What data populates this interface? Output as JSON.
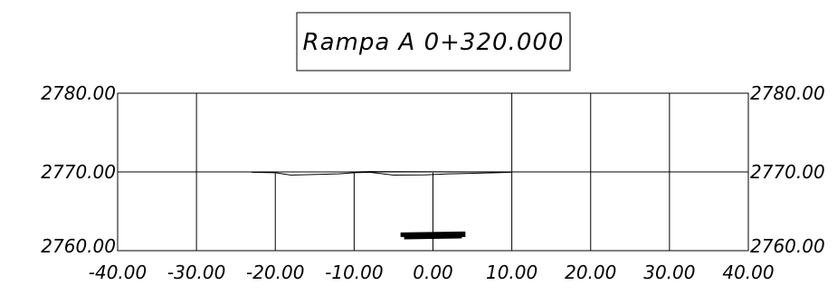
{
  "title": "Rampa A 0+320.000",
  "chart_data": {
    "type": "cross-section",
    "title": "Rampa A 0+320.000",
    "x_ticks": [
      "-40.00",
      "-30.00",
      "-20.00",
      "-10.00",
      "0.00",
      "10.00",
      "20.00",
      "30.00",
      "40.00"
    ],
    "x_tick_values": [
      -40,
      -30,
      -20,
      -10,
      0,
      10,
      20,
      30,
      40
    ],
    "y_ticks_left": [
      "2780.00",
      "2770.00",
      "2760.00"
    ],
    "y_ticks_right": [
      "2780.00",
      "2770.00",
      "2760.00"
    ],
    "y_tick_values": [
      2780,
      2770,
      2760
    ],
    "xlim": [
      -40,
      40
    ],
    "ylim": [
      2760,
      2780
    ],
    "grid": true,
    "vertical_grid_x": [
      -30,
      10,
      20,
      30
    ],
    "lower_verticals_x": [
      -20,
      -10,
      0
    ],
    "ground_profile": {
      "x": [
        -23,
        -20,
        -18,
        -12,
        -10,
        -8,
        -5,
        -1,
        2,
        8,
        10
      ],
      "y": [
        2769.95,
        2769.9,
        2769.6,
        2769.75,
        2769.9,
        2769.95,
        2769.6,
        2769.62,
        2769.75,
        2769.9,
        2769.95
      ]
    },
    "pavement_top": {
      "x": [
        -23,
        -10,
        -8,
        10
      ],
      "y": [
        2770.0,
        2770.0,
        2770.05,
        2770.0
      ]
    },
    "structure": {
      "x": [
        -4,
        4
      ],
      "y": [
        2762.2,
        2761.9
      ]
    }
  }
}
